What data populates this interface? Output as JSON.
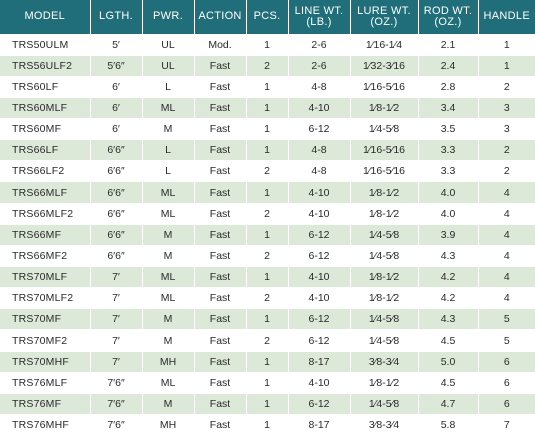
{
  "headers": {
    "model": "MODEL",
    "length": "LGTH.",
    "power": "PWR.",
    "action": "ACTION",
    "pieces": "PCS.",
    "line_wt": "LINE WT. (LB.)",
    "lure_wt": "LURE WT. (OZ.)",
    "rod_wt": "ROD WT. (OZ.)",
    "handle": "HANDLE"
  },
  "colors": {
    "header_bg": "#1f6e79",
    "header_text": "#ffffff",
    "stripe_bg": "#dde9d8"
  },
  "rows": [
    {
      "model": "TRS50ULM",
      "length": "5′",
      "power": "UL",
      "action": "Mod.",
      "pieces": "1",
      "line_wt": "2-6",
      "lure_wt": "1⁄16-1⁄4",
      "rod_wt": "2.1",
      "handle": "1"
    },
    {
      "model": "TRS56ULF2",
      "length": "5′6″",
      "power": "UL",
      "action": "Fast",
      "pieces": "2",
      "line_wt": "2-6",
      "lure_wt": "1⁄32-3⁄16",
      "rod_wt": "2.4",
      "handle": "1"
    },
    {
      "model": "TRS60LF",
      "length": "6′",
      "power": "L",
      "action": "Fast",
      "pieces": "1",
      "line_wt": "4-8",
      "lure_wt": "1⁄16-5⁄16",
      "rod_wt": "2.8",
      "handle": "2"
    },
    {
      "model": "TRS60MLF",
      "length": "6′",
      "power": "ML",
      "action": "Fast",
      "pieces": "1",
      "line_wt": "4-10",
      "lure_wt": "1⁄8-1⁄2",
      "rod_wt": "3.4",
      "handle": "3"
    },
    {
      "model": "TRS60MF",
      "length": "6′",
      "power": "M",
      "action": "Fast",
      "pieces": "1",
      "line_wt": "6-12",
      "lure_wt": "1⁄4-5⁄8",
      "rod_wt": "3.5",
      "handle": "3"
    },
    {
      "model": "TRS66LF",
      "length": "6′6″",
      "power": "L",
      "action": "Fast",
      "pieces": "1",
      "line_wt": "4-8",
      "lure_wt": "1⁄16-5⁄16",
      "rod_wt": "3.3",
      "handle": "2"
    },
    {
      "model": "TRS66LF2",
      "length": "6′6″",
      "power": "L",
      "action": "Fast",
      "pieces": "2",
      "line_wt": "4-8",
      "lure_wt": "1⁄16-5⁄16",
      "rod_wt": "3.3",
      "handle": "2"
    },
    {
      "model": "TRS66MLF",
      "length": "6′6″",
      "power": "ML",
      "action": "Fast",
      "pieces": "1",
      "line_wt": "4-10",
      "lure_wt": "1⁄8-1⁄2",
      "rod_wt": "4.0",
      "handle": "4"
    },
    {
      "model": "TRS66MLF2",
      "length": "6′6″",
      "power": "ML",
      "action": "Fast",
      "pieces": "2",
      "line_wt": "4-10",
      "lure_wt": "1⁄8-1⁄2",
      "rod_wt": "4.0",
      "handle": "4"
    },
    {
      "model": "TRS66MF",
      "length": "6′6″",
      "power": "M",
      "action": "Fast",
      "pieces": "1",
      "line_wt": "6-12",
      "lure_wt": "1⁄4-5⁄8",
      "rod_wt": "3.9",
      "handle": "4"
    },
    {
      "model": "TRS66MF2",
      "length": "6′6″",
      "power": "M",
      "action": "Fast",
      "pieces": "2",
      "line_wt": "6-12",
      "lure_wt": "1⁄4-5⁄8",
      "rod_wt": "4.3",
      "handle": "4"
    },
    {
      "model": "TRS70MLF",
      "length": "7′",
      "power": "ML",
      "action": "Fast",
      "pieces": "1",
      "line_wt": "4-10",
      "lure_wt": "1⁄8-1⁄2",
      "rod_wt": "4.2",
      "handle": "4"
    },
    {
      "model": "TRS70MLF2",
      "length": "7′",
      "power": "ML",
      "action": "Fast",
      "pieces": "2",
      "line_wt": "4-10",
      "lure_wt": "1⁄8-1⁄2",
      "rod_wt": "4.2",
      "handle": "4"
    },
    {
      "model": "TRS70MF",
      "length": "7′",
      "power": "M",
      "action": "Fast",
      "pieces": "1",
      "line_wt": "6-12",
      "lure_wt": "1⁄4-5⁄8",
      "rod_wt": "4.3",
      "handle": "5"
    },
    {
      "model": "TRS70MF2",
      "length": "7′",
      "power": "M",
      "action": "Fast",
      "pieces": "2",
      "line_wt": "6-12",
      "lure_wt": "1⁄4-5⁄8",
      "rod_wt": "4.5",
      "handle": "5"
    },
    {
      "model": "TRS70MHF",
      "length": "7′",
      "power": "MH",
      "action": "Fast",
      "pieces": "1",
      "line_wt": "8-17",
      "lure_wt": "3⁄8-3⁄4",
      "rod_wt": "5.0",
      "handle": "6"
    },
    {
      "model": "TRS76MLF",
      "length": "7′6″",
      "power": "ML",
      "action": "Fast",
      "pieces": "1",
      "line_wt": "4-10",
      "lure_wt": "1⁄8-1⁄2",
      "rod_wt": "4.5",
      "handle": "6"
    },
    {
      "model": "TRS76MF",
      "length": "7′6″",
      "power": "M",
      "action": "Fast",
      "pieces": "1",
      "line_wt": "6-12",
      "lure_wt": "1⁄4-5⁄8",
      "rod_wt": "4.7",
      "handle": "6"
    },
    {
      "model": "TRS76MHF",
      "length": "7′6″",
      "power": "MH",
      "action": "Fast",
      "pieces": "1",
      "line_wt": "8-17",
      "lure_wt": "3⁄8-3⁄4",
      "rod_wt": "5.8",
      "handle": "7"
    }
  ]
}
